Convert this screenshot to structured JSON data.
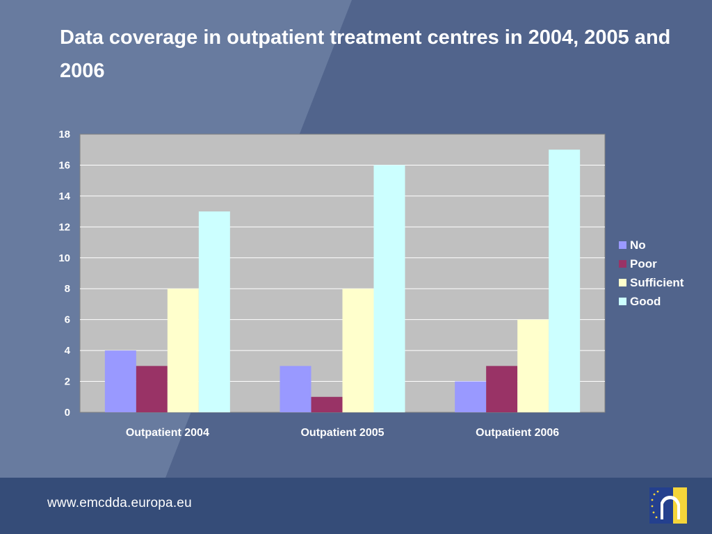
{
  "slide": {
    "title": "Data coverage in outpatient treatment centres in 2004, 2005 and 2006",
    "footer_url": "www.emcdda.europa.eu",
    "logo_icon": "emcdda-logo-icon"
  },
  "chart_data": {
    "type": "bar",
    "title": "",
    "xlabel": "",
    "ylabel": "",
    "categories": [
      "Outpatient 2004",
      "Outpatient 2005",
      "Outpatient 2006"
    ],
    "series": [
      {
        "name": "No",
        "values": [
          4,
          3,
          2
        ],
        "color": "#9999ff"
      },
      {
        "name": "Poor",
        "values": [
          3,
          1,
          3
        ],
        "color": "#993366"
      },
      {
        "name": "Sufficient",
        "values": [
          8,
          8,
          6
        ],
        "color": "#ffffcc"
      },
      {
        "name": "Good",
        "values": [
          13,
          16,
          17
        ],
        "color": "#ccffff"
      }
    ],
    "ylim": [
      0,
      18
    ],
    "yticks": [
      "0",
      "2",
      "4",
      "6",
      "8",
      "10",
      "12",
      "14",
      "16",
      "18"
    ],
    "grid": true,
    "legend": "right",
    "plot_background": "#c0c0c0"
  }
}
